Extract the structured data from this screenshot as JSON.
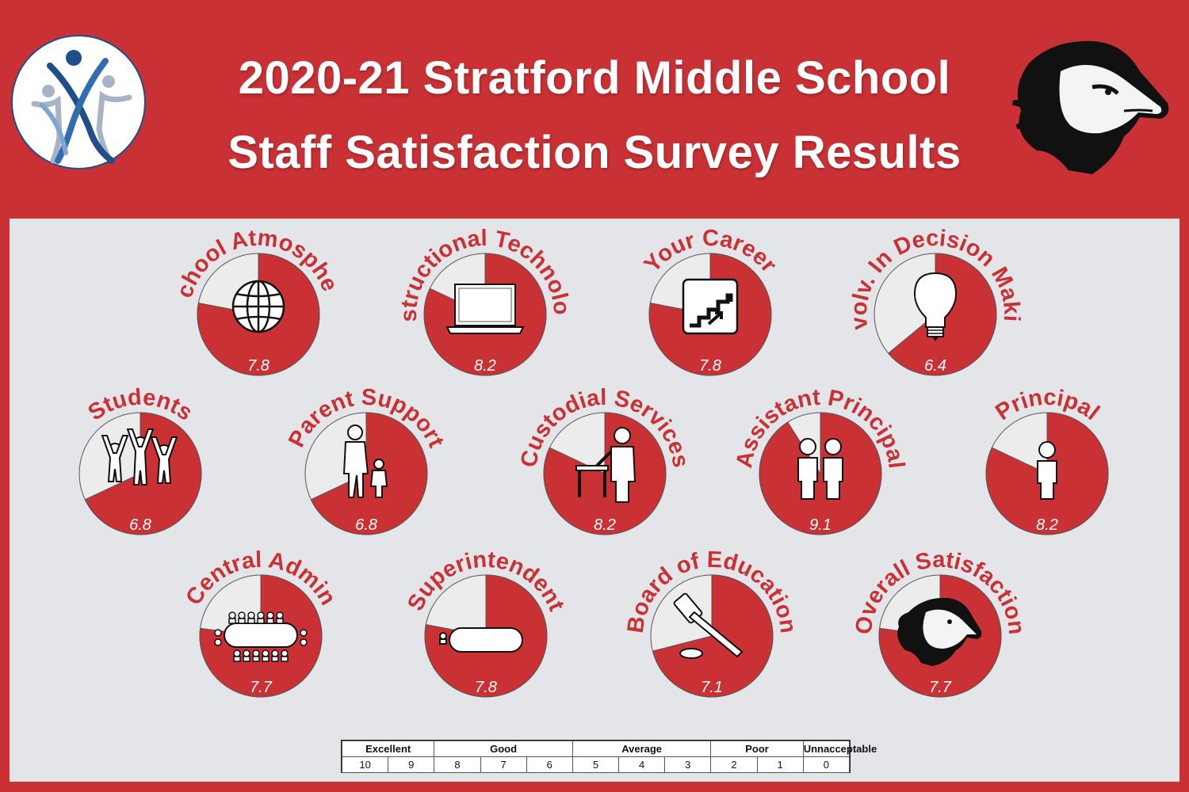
{
  "header": {
    "title_line1": "2020-21 Stratford Middle School",
    "title_line2": "Staff Satisfaction Survey Results"
  },
  "logos": {
    "left": "people-figures-logo",
    "right": "mustang-mascot-logo"
  },
  "colors": {
    "background": "#c93135",
    "panel": "#e4e5e8",
    "accent": "#c93135",
    "remainder": "#ececec",
    "label": "#c93135"
  },
  "chart_data": {
    "type": "pie",
    "scale_max": 10,
    "items": [
      {
        "label": "School Atmosphere",
        "value": 7.8,
        "display": "7.8",
        "icon": "globe-icon"
      },
      {
        "label": "Instructional Technology",
        "value": 8.2,
        "display": "8.2",
        "icon": "laptop-icon"
      },
      {
        "label": "Your Career",
        "value": 7.8,
        "display": "7.8",
        "icon": "stairs-icon"
      },
      {
        "label": "Involv. In Decision Making",
        "value": 6.4,
        "display": "6.4",
        "icon": "lightbulb-icon"
      },
      {
        "label": "Students",
        "value": 6.8,
        "display": "6.8",
        "icon": "students-icon"
      },
      {
        "label": "Parent Support",
        "value": 6.8,
        "display": "6.8",
        "icon": "parent-child-icon"
      },
      {
        "label": "Custodial Services",
        "value": 8.2,
        "display": "8.2",
        "icon": "custodian-icon"
      },
      {
        "label": "Assistant Principal",
        "value": 9.1,
        "display": "9.1",
        "icon": "two-people-icon"
      },
      {
        "label": "Principal",
        "value": 8.2,
        "display": "8.2",
        "icon": "person-icon"
      },
      {
        "label": "Central Admin",
        "value": 7.7,
        "display": "7.7",
        "icon": "conference-table-icon"
      },
      {
        "label": "Superintendent",
        "value": 7.8,
        "display": "7.8",
        "icon": "meeting-table-icon"
      },
      {
        "label": "Board of Education",
        "value": 7.1,
        "display": "7.1",
        "icon": "gavel-icon"
      },
      {
        "label": "Overall Satisfaction",
        "value": 7.7,
        "display": "7.7",
        "icon": "mustang-icon"
      }
    ]
  },
  "legend": {
    "categories": [
      "Excellent",
      "Good",
      "Average",
      "Poor",
      "Unnacceptable"
    ],
    "numbers": [
      "10",
      "9",
      "8",
      "7",
      "6",
      "5",
      "4",
      "3",
      "2",
      "1",
      "0"
    ]
  }
}
